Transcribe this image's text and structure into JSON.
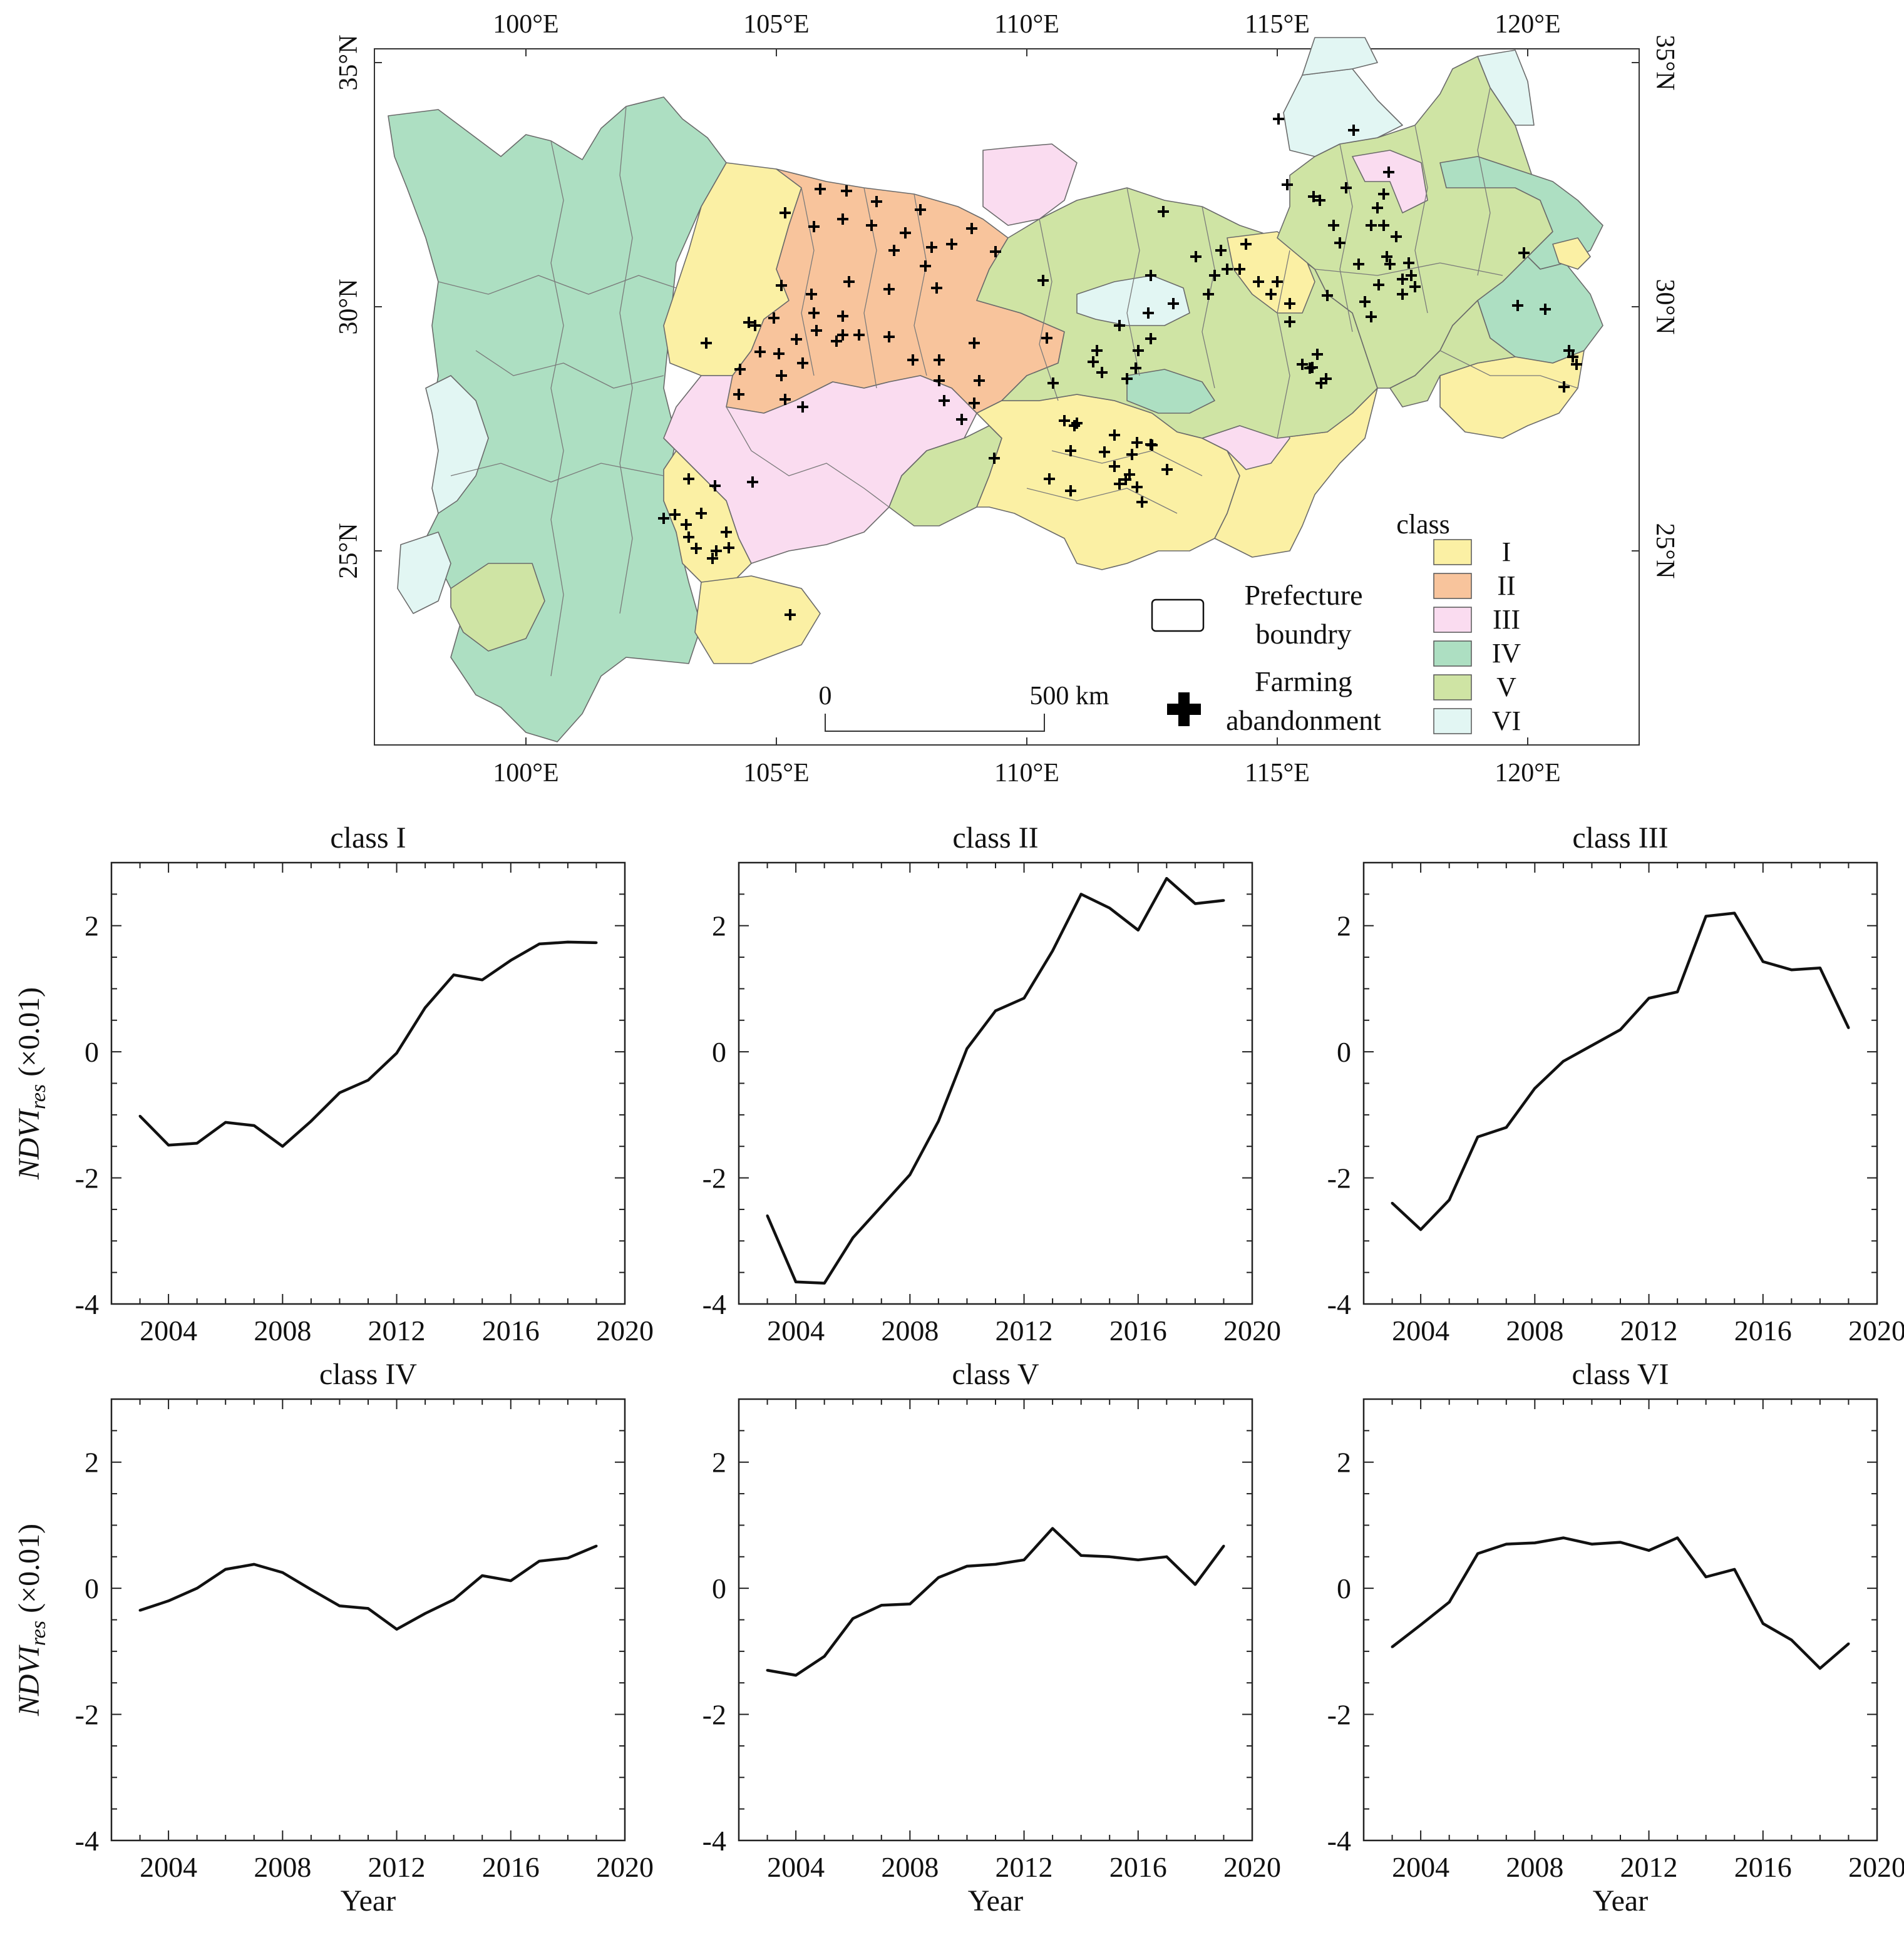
{
  "map": {
    "lon_ticks": [
      "100°E",
      "105°E",
      "110°E",
      "115°E",
      "120°E"
    ],
    "lat_ticks": [
      "25°N",
      "30°N",
      "35°N"
    ],
    "legend": {
      "title": "class",
      "classes": [
        {
          "label": "I",
          "color": "#fbf0a4"
        },
        {
          "label": "II",
          "color": "#f8c49c"
        },
        {
          "label": "III",
          "color": "#fadcf0"
        },
        {
          "label": "IV",
          "color": "#addfc2"
        },
        {
          "label": "V",
          "color": "#cfe4a4"
        },
        {
          "label": "VI",
          "color": "#e2f6f3"
        }
      ],
      "boundary_label_1": "Prefecture",
      "boundary_label_2": "boundry",
      "abandon_label_1": "Farming",
      "abandon_label_2": "abandonment"
    },
    "scale": {
      "start": "0",
      "end": "500 km"
    }
  },
  "chart_data": [
    {
      "type": "line",
      "title": "class I",
      "xlabel": "Year",
      "ylabel": "NDVI",
      "ylabel_sub": "res",
      "ylabel_unit": " (×0.01)",
      "xlim": [
        2002,
        2020
      ],
      "ylim": [
        -4,
        3
      ],
      "xticks": [
        2004,
        2008,
        2012,
        2016,
        2020
      ],
      "yticks": [
        -4,
        -2,
        0,
        2
      ],
      "x": [
        2003,
        2004,
        2005,
        2006,
        2007,
        2008,
        2009,
        2010,
        2011,
        2012,
        2013,
        2014,
        2015,
        2016,
        2017,
        2018,
        2019
      ],
      "values": [
        -1.02,
        -1.48,
        -1.45,
        -1.12,
        -1.17,
        -1.5,
        -1.1,
        -0.65,
        -0.45,
        -0.02,
        0.7,
        1.22,
        1.14,
        1.45,
        1.71,
        1.74,
        1.73
      ]
    },
    {
      "type": "line",
      "title": "class II",
      "xlabel": "Year",
      "ylabel": "NDVI",
      "ylabel_sub": "res",
      "ylabel_unit": " (×0.01)",
      "xlim": [
        2002,
        2020
      ],
      "ylim": [
        -4,
        3
      ],
      "xticks": [
        2004,
        2008,
        2012,
        2016,
        2020
      ],
      "yticks": [
        -4,
        -2,
        0,
        2
      ],
      "x": [
        2003,
        2004,
        2005,
        2006,
        2007,
        2008,
        2009,
        2010,
        2011,
        2012,
        2013,
        2014,
        2015,
        2016,
        2017,
        2018,
        2019
      ],
      "values": [
        -2.6,
        -3.65,
        -3.67,
        -2.95,
        -2.45,
        -1.95,
        -1.1,
        0.05,
        0.65,
        0.85,
        1.6,
        2.5,
        2.28,
        1.93,
        2.75,
        2.35,
        2.4
      ]
    },
    {
      "type": "line",
      "title": "class III",
      "xlabel": "Year",
      "ylabel": "NDVI",
      "ylabel_sub": "res",
      "ylabel_unit": " (×0.01)",
      "xlim": [
        2002,
        2020
      ],
      "ylim": [
        -4,
        3
      ],
      "xticks": [
        2004,
        2008,
        2012,
        2016,
        2020
      ],
      "yticks": [
        -4,
        -2,
        0,
        2
      ],
      "x": [
        2003,
        2004,
        2005,
        2006,
        2007,
        2008,
        2009,
        2010,
        2011,
        2012,
        2013,
        2014,
        2015,
        2016,
        2017,
        2018,
        2019
      ],
      "values": [
        -2.4,
        -2.82,
        -2.35,
        -1.35,
        -1.2,
        -0.58,
        -0.15,
        0.1,
        0.35,
        0.85,
        0.95,
        2.15,
        2.2,
        1.43,
        1.3,
        1.33,
        0.38
      ]
    },
    {
      "type": "line",
      "title": "class IV",
      "xlabel": "Year",
      "ylabel": "NDVI",
      "ylabel_sub": "res",
      "ylabel_unit": " (×0.01)",
      "xlim": [
        2002,
        2020
      ],
      "ylim": [
        -4,
        3
      ],
      "xticks": [
        2004,
        2008,
        2012,
        2016,
        2020
      ],
      "yticks": [
        -4,
        -2,
        0,
        2
      ],
      "x": [
        2003,
        2004,
        2005,
        2006,
        2007,
        2008,
        2009,
        2010,
        2011,
        2012,
        2013,
        2014,
        2015,
        2016,
        2017,
        2018,
        2019
      ],
      "values": [
        -0.35,
        -0.2,
        0.0,
        0.3,
        0.38,
        0.25,
        -0.02,
        -0.28,
        -0.32,
        -0.65,
        -0.4,
        -0.18,
        0.2,
        0.12,
        0.43,
        0.48,
        0.67
      ]
    },
    {
      "type": "line",
      "title": "class V",
      "xlabel": "Year",
      "ylabel": "NDVI",
      "ylabel_sub": "res",
      "ylabel_unit": " (×0.01)",
      "xlim": [
        2002,
        2020
      ],
      "ylim": [
        -4,
        3
      ],
      "xticks": [
        2004,
        2008,
        2012,
        2016,
        2020
      ],
      "yticks": [
        -4,
        -2,
        0,
        2
      ],
      "x": [
        2003,
        2004,
        2005,
        2006,
        2007,
        2008,
        2009,
        2010,
        2011,
        2012,
        2013,
        2014,
        2015,
        2016,
        2017,
        2018,
        2019
      ],
      "values": [
        -1.3,
        -1.38,
        -1.08,
        -0.48,
        -0.27,
        -0.25,
        0.17,
        0.35,
        0.38,
        0.45,
        0.95,
        0.52,
        0.5,
        0.45,
        0.5,
        0.06,
        0.67
      ]
    },
    {
      "type": "line",
      "title": "class VI",
      "xlabel": "Year",
      "ylabel": "NDVI",
      "ylabel_sub": "res",
      "ylabel_unit": " (×0.01)",
      "xlim": [
        2002,
        2020
      ],
      "ylim": [
        -4,
        3
      ],
      "xticks": [
        2004,
        2008,
        2012,
        2016,
        2020
      ],
      "yticks": [
        -4,
        -2,
        0,
        2
      ],
      "x": [
        2003,
        2004,
        2005,
        2006,
        2007,
        2008,
        2009,
        2010,
        2011,
        2012,
        2013,
        2014,
        2015,
        2016,
        2017,
        2018,
        2019
      ],
      "values": [
        -0.93,
        -0.58,
        -0.22,
        0.55,
        0.7,
        0.72,
        0.8,
        0.7,
        0.73,
        0.6,
        0.8,
        0.18,
        0.3,
        -0.56,
        -0.82,
        -1.27,
        -0.88
      ]
    }
  ]
}
